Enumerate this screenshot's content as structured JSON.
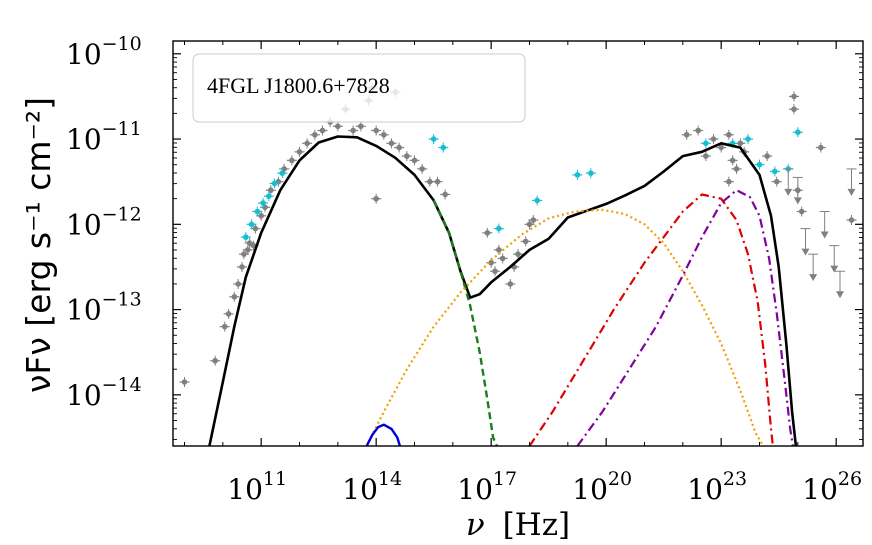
{
  "chart_data": {
    "type": "scatter",
    "title": "",
    "legend_label": "4FGL J1800.6+7828",
    "legend_position": "top-left",
    "xlabel": {
      "symbol": "ν",
      "unit": "[Hz]"
    },
    "ylabel": {
      "text": "νFν [erg s⁻¹ cm⁻²]"
    },
    "x_scale": "log10",
    "y_scale": "log10",
    "xlim_log": [
      8.7,
      26.7
    ],
    "ylim_log": [
      -14.6,
      -9.85
    ],
    "x_ticks": [
      {
        "log": 11,
        "base": "10",
        "exp": "11"
      },
      {
        "log": 14,
        "base": "10",
        "exp": "14"
      },
      {
        "log": 17,
        "base": "10",
        "exp": "17"
      },
      {
        "log": 20,
        "base": "10",
        "exp": "20"
      },
      {
        "log": 23,
        "base": "10",
        "exp": "23"
      },
      {
        "log": 26,
        "base": "10",
        "exp": "26"
      }
    ],
    "y_ticks": [
      {
        "log": -10,
        "base": "10",
        "exp": "−10"
      },
      {
        "log": -11,
        "base": "10",
        "exp": "−11"
      },
      {
        "log": -12,
        "base": "10",
        "exp": "−12"
      },
      {
        "log": -13,
        "base": "10",
        "exp": "−13"
      },
      {
        "log": -14,
        "base": "10",
        "exp": "−14"
      }
    ],
    "colors": {
      "archival": "#808080",
      "simultaneous": "#17becf",
      "total": "#000000",
      "synchrotron": "#1a7f1a",
      "ssc": "#f0a000",
      "ec1": "#e00000",
      "ec2": "#8000a0",
      "disk": "#0000dd"
    },
    "series": [
      {
        "name": "total-model",
        "style": "solid",
        "x": [
          9.65,
          10.0,
          10.3,
          10.6,
          11.0,
          11.5,
          12.0,
          12.5,
          13.0,
          13.5,
          14.0,
          14.5,
          15.0,
          15.5,
          15.9,
          16.2,
          16.45,
          16.7,
          17.0,
          17.5,
          18.0,
          18.5,
          19.0,
          19.5,
          20.0,
          20.5,
          21.0,
          21.5,
          22.0,
          22.5,
          23.0,
          23.5,
          24.0,
          24.3,
          24.5,
          24.7,
          24.85,
          24.95
        ],
        "y": [
          -14.6,
          -13.85,
          -13.2,
          -12.62,
          -12.1,
          -11.6,
          -11.25,
          -11.04,
          -10.97,
          -10.98,
          -11.08,
          -11.22,
          -11.42,
          -11.72,
          -12.1,
          -12.55,
          -12.86,
          -12.82,
          -12.68,
          -12.5,
          -12.3,
          -12.17,
          -11.92,
          -11.84,
          -11.76,
          -11.66,
          -11.55,
          -11.38,
          -11.2,
          -11.15,
          -11.05,
          -11.1,
          -11.42,
          -11.9,
          -12.5,
          -13.4,
          -14.2,
          -14.6
        ]
      },
      {
        "name": "synchrotron",
        "style": "dashed",
        "x": [
          15.5,
          15.9,
          16.2,
          16.45,
          16.7,
          16.9,
          17.05,
          17.15
        ],
        "y": [
          -11.72,
          -12.1,
          -12.55,
          -12.95,
          -13.5,
          -14.05,
          -14.5,
          -14.6
        ]
      },
      {
        "name": "ssc",
        "style": "dotted",
        "x": [
          13.75,
          14.2,
          14.8,
          15.5,
          16.2,
          17.0,
          17.8,
          18.5,
          19.2,
          19.9,
          20.5,
          21.0,
          21.5,
          22.0,
          22.5,
          23.0,
          23.5,
          23.9,
          24.1
        ],
        "y": [
          -14.6,
          -14.2,
          -13.7,
          -13.2,
          -12.8,
          -12.42,
          -12.12,
          -11.93,
          -11.85,
          -11.83,
          -11.88,
          -12.0,
          -12.22,
          -12.55,
          -12.95,
          -13.4,
          -13.95,
          -14.45,
          -14.6
        ]
      },
      {
        "name": "ec-component-1",
        "style": "dashdot",
        "x": [
          18.0,
          18.6,
          19.4,
          20.2,
          21.0,
          21.5,
          22.0,
          22.5,
          23.0,
          23.4,
          23.7,
          23.95,
          24.15,
          24.3,
          24.35
        ],
        "y": [
          -14.6,
          -14.2,
          -13.6,
          -13.0,
          -12.45,
          -12.15,
          -11.85,
          -11.65,
          -11.7,
          -11.95,
          -12.35,
          -12.9,
          -13.65,
          -14.4,
          -14.6
        ]
      },
      {
        "name": "ec-component-2",
        "style": "dashdot",
        "x": [
          19.25,
          19.9,
          20.6,
          21.3,
          22.0,
          22.5,
          23.0,
          23.4,
          23.75,
          24.0,
          24.25,
          24.45,
          24.65,
          24.8,
          24.87
        ],
        "y": [
          -14.6,
          -14.2,
          -13.7,
          -13.2,
          -12.6,
          -12.15,
          -11.75,
          -11.6,
          -11.68,
          -11.9,
          -12.4,
          -13.05,
          -13.8,
          -14.4,
          -14.6
        ]
      },
      {
        "name": "disk",
        "style": "solid",
        "x": [
          13.75,
          13.9,
          14.05,
          14.2,
          14.4,
          14.55,
          14.62
        ],
        "y": [
          -14.6,
          -14.47,
          -14.38,
          -14.35,
          -14.4,
          -14.5,
          -14.6
        ]
      }
    ],
    "points_simultaneous": [
      {
        "x": 10.6,
        "y": -12.15
      },
      {
        "x": 10.75,
        "y": -12.0
      },
      {
        "x": 10.9,
        "y": -11.85
      },
      {
        "x": 11.05,
        "y": -11.75
      },
      {
        "x": 11.2,
        "y": -11.67
      },
      {
        "x": 11.35,
        "y": -11.52
      },
      {
        "x": 11.55,
        "y": -11.4
      },
      {
        "x": 15.5,
        "y": -11.0
      },
      {
        "x": 15.75,
        "y": -11.1
      },
      {
        "x": 17.2,
        "y": -12.05
      },
      {
        "x": 18.2,
        "y": -11.72
      },
      {
        "x": 19.25,
        "y": -11.42
      },
      {
        "x": 19.6,
        "y": -11.4
      },
      {
        "x": 22.6,
        "y": -11.05
      },
      {
        "x": 23.3,
        "y": -11.05
      },
      {
        "x": 23.7,
        "y": -11.0
      },
      {
        "x": 24.0,
        "y": -11.3
      },
      {
        "x": 24.4,
        "y": -11.38
      },
      {
        "x": 24.75,
        "y": -11.35
      },
      {
        "x": 25.0,
        "y": -10.92
      }
    ],
    "points_archival": [
      {
        "x": 9.0,
        "y": -13.85
      },
      {
        "x": 9.8,
        "y": -13.6
      },
      {
        "x": 10.05,
        "y": -13.2
      },
      {
        "x": 10.15,
        "y": -13.05
      },
      {
        "x": 10.3,
        "y": -12.85
      },
      {
        "x": 10.4,
        "y": -12.7
      },
      {
        "x": 10.5,
        "y": -12.5
      },
      {
        "x": 10.55,
        "y": -12.35
      },
      {
        "x": 10.65,
        "y": -12.3
      },
      {
        "x": 10.7,
        "y": -12.22
      },
      {
        "x": 10.8,
        "y": -12.25
      },
      {
        "x": 10.85,
        "y": -12.05
      },
      {
        "x": 11.0,
        "y": -11.9
      },
      {
        "x": 11.1,
        "y": -11.8
      },
      {
        "x": 11.25,
        "y": -11.6
      },
      {
        "x": 11.45,
        "y": -11.5
      },
      {
        "x": 11.6,
        "y": -11.35
      },
      {
        "x": 11.8,
        "y": -11.25
      },
      {
        "x": 12.0,
        "y": -11.15
      },
      {
        "x": 12.2,
        "y": -11.05
      },
      {
        "x": 12.4,
        "y": -10.95
      },
      {
        "x": 12.6,
        "y": -10.9
      },
      {
        "x": 12.8,
        "y": -10.8
      },
      {
        "x": 13.0,
        "y": -10.85
      },
      {
        "x": 13.2,
        "y": -10.65
      },
      {
        "x": 13.4,
        "y": -10.9
      },
      {
        "x": 13.6,
        "y": -10.85
      },
      {
        "x": 13.8,
        "y": -10.55
      },
      {
        "x": 14.0,
        "y": -10.9
      },
      {
        "x": 14.2,
        "y": -10.95
      },
      {
        "x": 14.4,
        "y": -11.05
      },
      {
        "x": 14.6,
        "y": -11.1
      },
      {
        "x": 14.8,
        "y": -11.2
      },
      {
        "x": 15.0,
        "y": -11.25
      },
      {
        "x": 15.2,
        "y": -11.35
      },
      {
        "x": 15.4,
        "y": -11.5
      },
      {
        "x": 15.6,
        "y": -11.5
      },
      {
        "x": 15.8,
        "y": -11.65
      },
      {
        "x": 14.0,
        "y": -11.7
      },
      {
        "x": 13.9,
        "y": -10.4
      },
      {
        "x": 14.5,
        "y": -10.45
      },
      {
        "x": 16.9,
        "y": -12.1
      },
      {
        "x": 17.0,
        "y": -12.45
      },
      {
        "x": 17.1,
        "y": -12.55
      },
      {
        "x": 17.2,
        "y": -12.3
      },
      {
        "x": 17.3,
        "y": -12.4
      },
      {
        "x": 17.5,
        "y": -12.7
      },
      {
        "x": 17.6,
        "y": -12.5
      },
      {
        "x": 17.7,
        "y": -12.35
      },
      {
        "x": 17.9,
        "y": -12.2
      },
      {
        "x": 18.0,
        "y": -12.0
      },
      {
        "x": 18.1,
        "y": -11.95
      },
      {
        "x": 22.1,
        "y": -10.95
      },
      {
        "x": 22.4,
        "y": -10.9
      },
      {
        "x": 22.6,
        "y": -11.2
      },
      {
        "x": 22.8,
        "y": -11.0
      },
      {
        "x": 23.0,
        "y": -11.1
      },
      {
        "x": 23.2,
        "y": -10.95
      },
      {
        "x": 23.3,
        "y": -11.25
      },
      {
        "x": 23.5,
        "y": -11.05
      },
      {
        "x": 23.6,
        "y": -11.15
      },
      {
        "x": 23.2,
        "y": -11.5
      },
      {
        "x": 23.4,
        "y": -11.35
      },
      {
        "x": 24.2,
        "y": -11.2
      },
      {
        "x": 24.45,
        "y": -11.5
      },
      {
        "x": 24.9,
        "y": -10.5
      },
      {
        "x": 24.9,
        "y": -10.65
      },
      {
        "x": 25.0,
        "y": -11.6
      },
      {
        "x": 25.1,
        "y": -11.85
      },
      {
        "x": 25.6,
        "y": -11.1
      },
      {
        "x": 26.4,
        "y": -11.95
      }
    ],
    "upper_limits": [
      {
        "x": 24.75,
        "y": -11.35
      },
      {
        "x": 25.0,
        "y": -11.45
      },
      {
        "x": 25.2,
        "y": -12.05
      },
      {
        "x": 25.4,
        "y": -12.35
      },
      {
        "x": 25.7,
        "y": -11.85
      },
      {
        "x": 25.95,
        "y": -12.25
      },
      {
        "x": 26.1,
        "y": -12.55
      },
      {
        "x": 26.4,
        "y": -11.35
      }
    ]
  }
}
